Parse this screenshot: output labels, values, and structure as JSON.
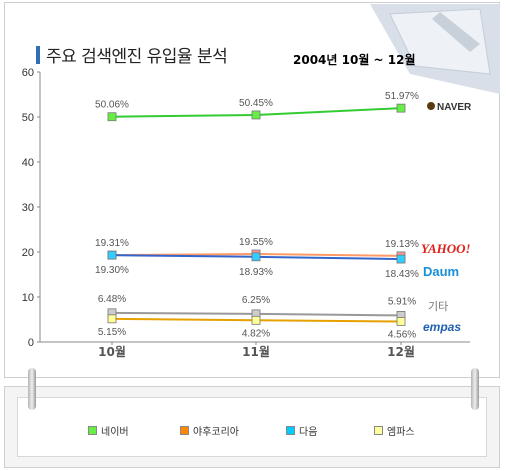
{
  "title": "주요 검색엔진 유입율 분석",
  "subtitle": "2004년  10월  ~ 12월",
  "chart_data": {
    "type": "line",
    "categories": [
      "10월",
      "11월",
      "12월"
    ],
    "ylim": [
      0,
      60
    ],
    "yticks": [
      0,
      10,
      20,
      30,
      40,
      50,
      60
    ],
    "grid": false,
    "legend_position": "bottom",
    "series": [
      {
        "name": "네이버",
        "values": [
          50.06,
          50.45,
          51.97
        ],
        "labels": [
          "50.06%",
          "50.45%",
          "51.97%"
        ],
        "color": "#33cc33",
        "marker": "#66ee44",
        "label_pos": "above"
      },
      {
        "name": "야후코리아",
        "values": [
          19.31,
          19.55,
          19.13
        ],
        "labels": [
          "19.31%",
          "19.55%",
          "19.13%"
        ],
        "color": "#ff9966",
        "marker": "#ff9999",
        "label_pos": "above"
      },
      {
        "name": "다음",
        "values": [
          19.3,
          18.93,
          18.43
        ],
        "labels": [
          "19.30%",
          "18.93%",
          "18.43%"
        ],
        "color": "#3366cc",
        "marker": "#33ccff",
        "label_pos": "below"
      },
      {
        "name": "기타",
        "values": [
          6.48,
          6.25,
          5.91
        ],
        "labels": [
          "6.48%",
          "6.25%",
          "5.91%"
        ],
        "color": "#999999",
        "marker": "#cccccc",
        "label_pos": "above"
      },
      {
        "name": "엠파스",
        "values": [
          5.15,
          4.82,
          4.56
        ],
        "labels": [
          "5.15%",
          "4.82%",
          "4.56%"
        ],
        "color": "#e6a000",
        "marker": "#ffff99",
        "label_pos": "below"
      }
    ],
    "legend": [
      {
        "label": "네이버",
        "color": "#66ee44"
      },
      {
        "label": "야후코리아",
        "color": "#ff8800"
      },
      {
        "label": "다음",
        "color": "#00ccff"
      },
      {
        "label": "엠파스",
        "color": "#ffff99"
      }
    ]
  },
  "logos": {
    "naver": "NAVER",
    "yahoo": "YAHOO!",
    "daum": "Daum",
    "other": "기타",
    "empas": "empas"
  }
}
